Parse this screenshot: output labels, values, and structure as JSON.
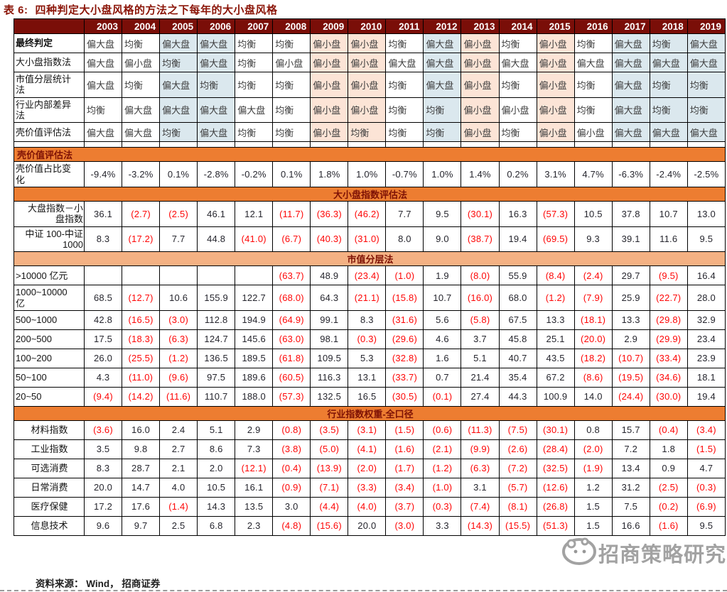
{
  "page": {
    "title_prefix": "表 6:",
    "title": "四种判定大小盘风格的方法之下每年的大小盘风格",
    "source": "资料来源： Wind， 招商证券"
  },
  "watermark": {
    "text": "招商策略研究",
    "icon": "wechat-mascot-icon"
  },
  "colors": {
    "title": "#8B1508",
    "header_bg": "#7A0E08",
    "section_strong": "#ED7D31",
    "section_light": "#F4B183",
    "section_text": "#7E1205",
    "tint_blue": "#DBE8EE",
    "tint_orange": "#FCE4D6",
    "negative_red": "#FE0606"
  },
  "years": [
    "2003",
    "2004",
    "2005",
    "2006",
    "2007",
    "2008",
    "2009",
    "2010",
    "2011",
    "2012",
    "2013",
    "2014",
    "2015",
    "2016",
    "2017",
    "2018",
    "2019"
  ],
  "tints": {
    "blue_years": [
      "2005",
      "2006",
      "2012",
      "2017",
      "2018",
      "2019"
    ],
    "orange_years": [
      "2009",
      "2010",
      "2013",
      "2015"
    ]
  },
  "judgment_rows": [
    {
      "label": "最终判定",
      "bold": true,
      "values": [
        "偏大盘",
        "均衡",
        "偏大盘",
        "偏大盘",
        "均衡",
        "均衡",
        "偏小盘",
        "偏小盘",
        "均衡",
        "偏大盘",
        "偏小盘",
        "均衡",
        "偏小盘",
        "均衡",
        "偏大盘",
        "均衡",
        "偏大盘"
      ]
    },
    {
      "label": "大小盘指数法",
      "bold": false,
      "values": [
        "偏大盘",
        "偏小盘",
        "均衡",
        "偏大盘",
        "均衡",
        "偏小盘",
        "偏小盘",
        "偏小盘",
        "偏大盘",
        "偏大盘",
        "偏小盘",
        "偏大盘",
        "偏小盘",
        "偏大盘",
        "偏大盘",
        "偏大盘",
        "偏大盘"
      ]
    },
    {
      "label": "市值分层统计\n法",
      "bold": false,
      "values": [
        "偏大盘",
        "均衡",
        "偏大盘",
        "均衡",
        "均衡",
        "均衡",
        "偏小盘",
        "偏小盘",
        "均衡",
        "偏大盘",
        "偏小盘",
        "均衡",
        "偏小盘",
        "均衡",
        "偏大盘",
        "均衡",
        "均衡"
      ]
    },
    {
      "label": "行业内部差异\n法",
      "bold": false,
      "values": [
        "均衡",
        "偏大盘",
        "偏大盘",
        "偏大盘",
        "偏大盘",
        "均衡",
        "偏小盘",
        "偏小盘",
        "均衡",
        "均衡",
        "偏小盘",
        "偏小盘",
        "偏小盘",
        "均衡",
        "偏大盘",
        "均衡",
        "均衡"
      ]
    },
    {
      "label": "壳价值评估法",
      "bold": false,
      "values": [
        "偏大盘",
        "偏大盘",
        "均衡",
        "偏大盘",
        "均衡",
        "均衡",
        "偏小盘",
        "均衡",
        "均衡",
        "均衡",
        "偏小盘",
        "均衡",
        "偏小盘",
        "偏小盘",
        "偏大盘",
        "偏大盘",
        "偏大盘"
      ]
    }
  ],
  "sections": [
    {
      "header": "壳价值评估法",
      "header_align": "left",
      "tone": "strong",
      "label_align": "left",
      "rows": [
        {
          "label": "壳价值占比变\n化",
          "values": [
            "-9.4%",
            "-3.2%",
            "0.1%",
            "-2.8%",
            "-0.2%",
            "0.1%",
            "1.8%",
            "1.0%",
            "-0.7%",
            "1.0%",
            "1.4%",
            "0.2%",
            "3.1%",
            "4.7%",
            "-6.3%",
            "-2.4%",
            "-2.5%"
          ]
        }
      ]
    },
    {
      "header": "大小盘指数评估法",
      "header_align": "center",
      "tone": "strong",
      "label_align": "right",
      "rows": [
        {
          "label": "大盘指数－小\n盘指数",
          "values": [
            "36.1",
            "(2.7)",
            "(2.5)",
            "46.1",
            "12.1",
            "(11.7)",
            "(36.3)",
            "(46.2)",
            "7.7",
            "9.5",
            "(30.1)",
            "16.3",
            "(57.3)",
            "10.5",
            "37.8",
            "10.7",
            "13.0"
          ]
        },
        {
          "label": "中证 100-中证\n1000",
          "values": [
            "8.3",
            "(17.2)",
            "7.7",
            "44.8",
            "(41.0)",
            "(6.7)",
            "(40.3)",
            "(31.0)",
            "8.0",
            "9.0",
            "(38.7)",
            "19.4",
            "(69.5)",
            "9.3",
            "39.1",
            "11.6",
            "9.5"
          ]
        }
      ]
    },
    {
      "header": "市值分层法",
      "header_align": "center",
      "tone": "light",
      "label_align": "left",
      "rows": [
        {
          "label": ">10000 亿元",
          "values": [
            "",
            "",
            "",
            "",
            "",
            "(63.7)",
            "48.9",
            "(23.4)",
            "(1.0)",
            "1.9",
            "(8.0)",
            "55.9",
            "(8.4)",
            "(2.4)",
            "29.7",
            "(9.5)",
            "16.4"
          ]
        },
        {
          "label": "1000~10000\n亿",
          "values": [
            "68.5",
            "(12.7)",
            "10.6",
            "155.9",
            "122.7",
            "(68.0)",
            "64.3",
            "(21.1)",
            "(15.8)",
            "10.7",
            "(16.0)",
            "68.0",
            "(1.2)",
            "(7.9)",
            "25.9",
            "(22.7)",
            "28.0"
          ]
        },
        {
          "label": "500~1000",
          "values": [
            "42.8",
            "(16.5)",
            "(3.0)",
            "112.8",
            "194.9",
            "(64.9)",
            "99.1",
            "8.3",
            "(31.6)",
            "5.6",
            "(5.8)",
            "67.5",
            "13.3",
            "(18.1)",
            "13.3",
            "(29.8)",
            "32.9"
          ]
        },
        {
          "label": "200~500",
          "values": [
            "17.5",
            "(18.3)",
            "(6.3)",
            "124.7",
            "145.6",
            "(63.0)",
            "98.1",
            "(0.3)",
            "(29.6)",
            "4.6",
            "3.7",
            "45.8",
            "25.1",
            "(20.0)",
            "2.9",
            "(29.9)",
            "23.4"
          ]
        },
        {
          "label": "100~200",
          "values": [
            "26.0",
            "(25.5)",
            "(1.2)",
            "136.5",
            "189.5",
            "(61.8)",
            "109.5",
            "5.3",
            "(32.8)",
            "1.6",
            "5.1",
            "40.7",
            "43.5",
            "(18.2)",
            "(10.7)",
            "(33.4)",
            "23.9"
          ]
        },
        {
          "label": "50~100",
          "values": [
            "4.3",
            "(11.0)",
            "(9.6)",
            "97.5",
            "189.6",
            "(60.5)",
            "116.3",
            "13.1",
            "(33.7)",
            "0.7",
            "21.4",
            "35.4",
            "67.2",
            "(8.6)",
            "(19.5)",
            "(34.6)",
            "18.1"
          ]
        },
        {
          "label": "20~50",
          "values": [
            "(9.4)",
            "(14.2)",
            "(11.6)",
            "110.7",
            "188.0",
            "(57.3)",
            "132.5",
            "16.5",
            "(30.5)",
            "(0.1)",
            "27.4",
            "44.3",
            "100.9",
            "14.0",
            "(24.4)",
            "(30.0)",
            "19.4"
          ]
        }
      ]
    },
    {
      "header": "行业指数权重-全口径",
      "header_align": "center",
      "tone": "strong",
      "label_align": "center",
      "rows": [
        {
          "label": "材料指数",
          "values": [
            "(3.6)",
            "16.0",
            "2.4",
            "5.1",
            "2.9",
            "(0.8)",
            "(3.5)",
            "(3.1)",
            "(1.5)",
            "(0.6)",
            "(11.3)",
            "(7.5)",
            "(30.1)",
            "0.8",
            "15.7",
            "(0.4)",
            "(3.4)"
          ]
        },
        {
          "label": "工业指数",
          "values": [
            "3.5",
            "9.8",
            "2.7",
            "8.6",
            "7.3",
            "(3.8)",
            "(5.0)",
            "(4.1)",
            "(1.6)",
            "(2.1)",
            "(9.9)",
            "(2.6)",
            "(28.4)",
            "(2.0)",
            "7.2",
            "1.8",
            "(1.5)"
          ]
        },
        {
          "label": "可选消费",
          "values": [
            "8.3",
            "28.7",
            "2.1",
            "2.0",
            "(12.1)",
            "(0.4)",
            "(13.9)",
            "(2.0)",
            "(1.7)",
            "(1.2)",
            "(6.3)",
            "(7.2)",
            "(32.5)",
            "(1.9)",
            "13.4",
            "0.9",
            "4.7"
          ]
        },
        {
          "label": "日常消费",
          "values": [
            "20.0",
            "14.7",
            "4.0",
            "10.5",
            "16.1",
            "(0.9)",
            "(7.1)",
            "(3.3)",
            "(3.4)",
            "(1.0)",
            "3.1",
            "(5.7)",
            "(12.6)",
            "1.2",
            "31.2",
            "(2.5)",
            "(0.3)"
          ]
        },
        {
          "label": "医疗保健",
          "values": [
            "17.2",
            "17.6",
            "(1.4)",
            "14.3",
            "13.5",
            "3.0",
            "(4.4)",
            "(4.0)",
            "(3.7)",
            "(0.3)",
            "(7.4)",
            "(8.1)",
            "(26.8)",
            "1.5",
            "7.5",
            "(0.2)",
            "(6.9)"
          ]
        },
        {
          "label": "信息技术",
          "values": [
            "9.6",
            "9.7",
            "2.5",
            "6.8",
            "2.3",
            "(4.8)",
            "(15.6)",
            "20.0",
            "(3.0)",
            "3.3",
            "(14.3)",
            "(15.5)",
            "(51.3)",
            "1.5",
            "16.6",
            "(1.6)",
            "9.5"
          ]
        }
      ]
    }
  ]
}
